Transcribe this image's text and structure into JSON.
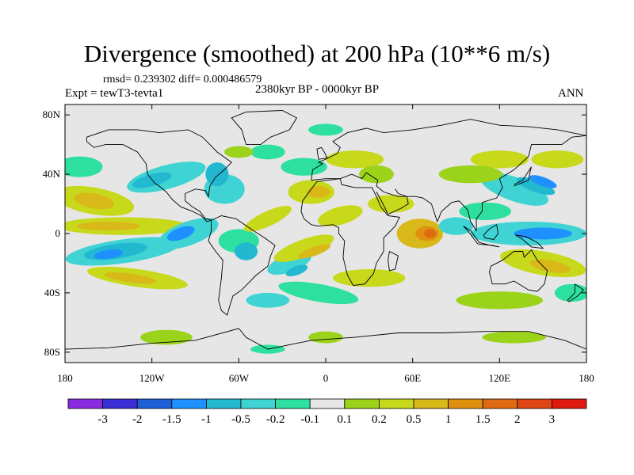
{
  "title": "Divergence (smoothed) at 200 hPa (10**6 m/s)",
  "stats_line": "rmsd= 0.239302 diff= 0.000486579",
  "experiment_label": "Expt = tewT3-tevta1",
  "period_label": "2380kyr BP - 0000kyr BP",
  "season_label": "ANN",
  "lat_ticks": [
    {
      "label": "80N",
      "lat": 80
    },
    {
      "label": "40N",
      "lat": 40
    },
    {
      "label": "0",
      "lat": 0
    },
    {
      "label": "40S",
      "lat": -40
    },
    {
      "label": "80S",
      "lat": -80
    }
  ],
  "lon_ticks": [
    {
      "label": "180",
      "lon": -180
    },
    {
      "label": "120W",
      "lon": -120
    },
    {
      "label": "60W",
      "lon": -60
    },
    {
      "label": "0",
      "lon": 0
    },
    {
      "label": "60E",
      "lon": 60
    },
    {
      "label": "120E",
      "lon": 120
    },
    {
      "label": "180",
      "lon": 180
    }
  ],
  "colorbar": {
    "colors": [
      "#8a2be2",
      "#3a2fd6",
      "#1f5fd6",
      "#1e90ff",
      "#22b8d0",
      "#3fd3d3",
      "#2ee0a0",
      "#e6e6e6",
      "#9bd31a",
      "#c8d81a",
      "#d9b81a",
      "#e0900f",
      "#e06a12",
      "#e04515",
      "#e01a10"
    ],
    "labels": [
      "-3",
      "-2",
      "-1.5",
      "-1",
      "-0.5",
      "-0.2",
      "-0.1",
      "0.1",
      "0.2",
      "0.5",
      "1",
      "1.5",
      "2",
      "3"
    ]
  },
  "field_colors": {
    "background": "#e6e6e6",
    "neg_weak": "#2ee0a0",
    "neg_mid": "#3fd3d3",
    "neg_strong": "#22b8d0",
    "neg_stronger": "#1e90ff",
    "pos_weak": "#9bd31a",
    "pos_mid": "#c8d81a",
    "pos_strong": "#d9b81a",
    "pos_stronger": "#e0900f",
    "pos_max": "#e06a12"
  }
}
